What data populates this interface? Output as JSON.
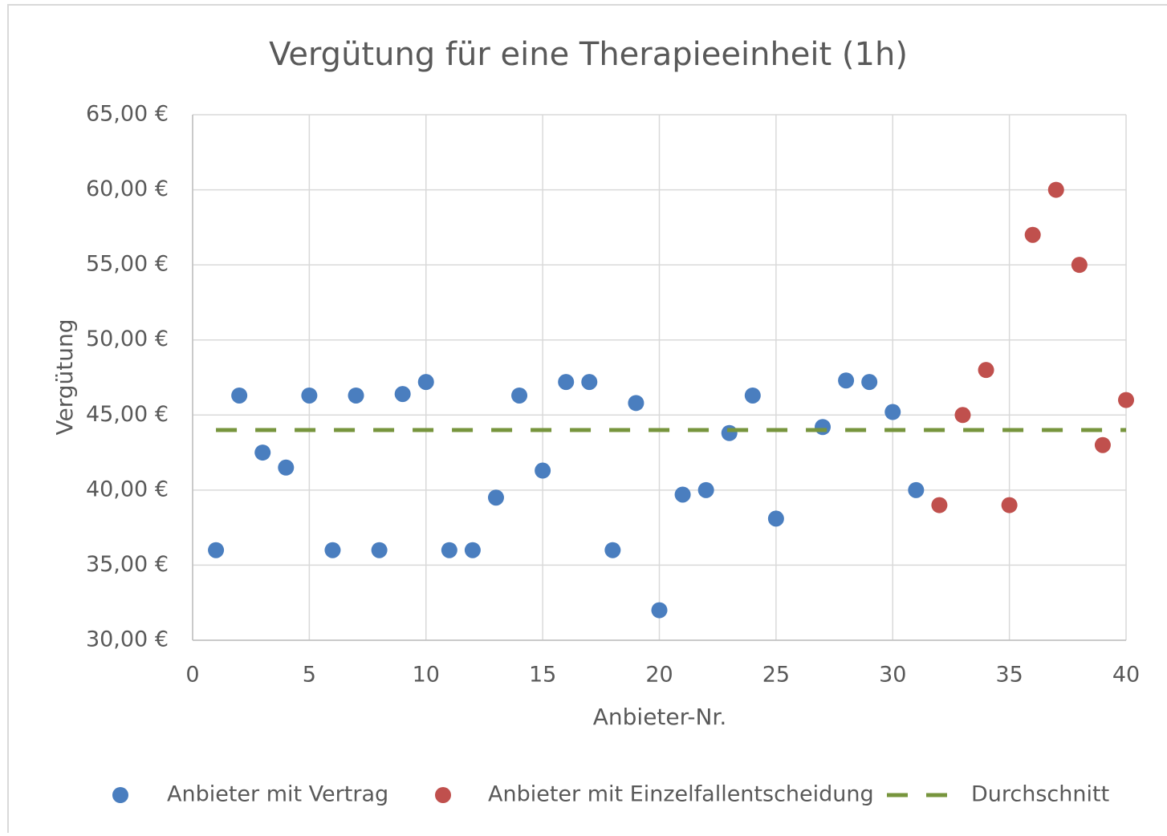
{
  "chart_data": {
    "type": "scatter",
    "title": "Vergütung für eine Therapieeinheit (1h)",
    "x_label": "Anbieter-Nr.",
    "y_label": "Vergütung",
    "xlim": [
      0,
      40
    ],
    "xticks": [
      0,
      5,
      10,
      15,
      20,
      25,
      30,
      35,
      40
    ],
    "ylim": [
      30,
      65
    ],
    "yticks": [
      {
        "value": 30,
        "label": "30,00 €"
      },
      {
        "value": 35,
        "label": "35,00 €"
      },
      {
        "value": 40,
        "label": "40,00 €"
      },
      {
        "value": 45,
        "label": "45,00 €"
      },
      {
        "value": 50,
        "label": "50,00 €"
      },
      {
        "value": 55,
        "label": "55,00 €"
      },
      {
        "value": 60,
        "label": "60,00 €"
      },
      {
        "value": 65,
        "label": "65,00 €"
      }
    ],
    "grid": true,
    "legend": "bottom",
    "series": [
      {
        "name": "Anbieter mit Vertrag",
        "color": "#4a7ebf",
        "style": "markers",
        "x": [
          1,
          2,
          3,
          4,
          5,
          6,
          7,
          8,
          9,
          10,
          11,
          12,
          13,
          14,
          15,
          16,
          17,
          18,
          19,
          20,
          21,
          22,
          23,
          24,
          25,
          27,
          28,
          29,
          30,
          31
        ],
        "values": [
          36,
          46.3,
          42.5,
          41.5,
          46.3,
          36,
          46.3,
          36,
          46.4,
          47.2,
          36,
          36,
          39.5,
          46.3,
          41.3,
          47.2,
          47.2,
          36,
          45.8,
          32,
          39.7,
          40,
          43.8,
          46.3,
          38.1,
          44.2,
          47.3,
          47.2,
          45.2,
          40
        ]
      },
      {
        "name": "Anbieter mit Einzelfallentscheidung",
        "color": "#c0504d",
        "style": "markers",
        "x": [
          32,
          33,
          34,
          35,
          36,
          37,
          38,
          39,
          40
        ],
        "values": [
          39,
          45,
          48,
          39,
          57,
          60,
          55,
          43,
          46
        ]
      },
      {
        "name": "Durchschnitt",
        "color": "#77953d",
        "style": "dashed",
        "x": [
          1,
          40
        ],
        "values": [
          44,
          44
        ]
      }
    ]
  }
}
